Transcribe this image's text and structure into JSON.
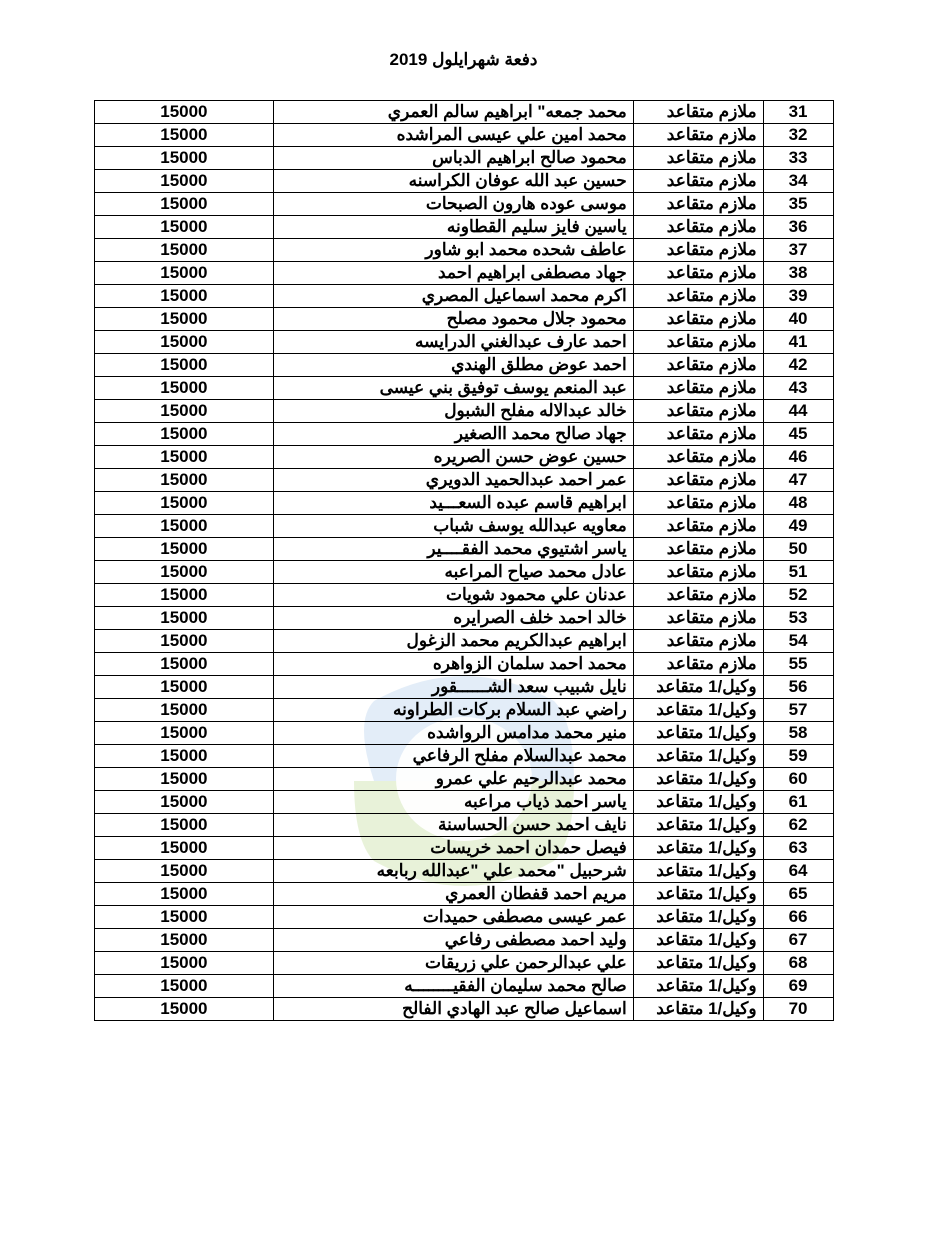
{
  "title": "دفعة شهرايلول 2019",
  "table": {
    "columns": [
      "num",
      "rank",
      "name",
      "amount"
    ],
    "rows": [
      {
        "num": "31",
        "rank": "ملازم متقاعد",
        "name": "محمد جمعه\" ابراهيم سالم العمري",
        "amount": "15000"
      },
      {
        "num": "32",
        "rank": "ملازم متقاعد",
        "name": "محمد امين علي عيسى المراشده",
        "amount": "15000"
      },
      {
        "num": "33",
        "rank": "ملازم متقاعد",
        "name": "محمود صالح ابراهيم الدباس",
        "amount": "15000"
      },
      {
        "num": "34",
        "rank": "ملازم متقاعد",
        "name": "حسين عبد الله عوفان الكراسنه",
        "amount": "15000"
      },
      {
        "num": "35",
        "rank": "ملازم متقاعد",
        "name": "موسى عوده هارون الصبحات",
        "amount": "15000"
      },
      {
        "num": "36",
        "rank": "ملازم متقاعد",
        "name": "ياسين فايز سليم القطاونه",
        "amount": "15000"
      },
      {
        "num": "37",
        "rank": "ملازم متقاعد",
        "name": "عاطف شحده محمد ابو شاور",
        "amount": "15000"
      },
      {
        "num": "38",
        "rank": "ملازم متقاعد",
        "name": "جهاد مصطفى ابراهيم احمد",
        "amount": "15000"
      },
      {
        "num": "39",
        "rank": "ملازم متقاعد",
        "name": "اكرم محمد اسماعيل المصري",
        "amount": "15000"
      },
      {
        "num": "40",
        "rank": "ملازم متقاعد",
        "name": "محمود جلال محمود مصلح",
        "amount": "15000"
      },
      {
        "num": "41",
        "rank": "ملازم متقاعد",
        "name": "احمد عارف عبدالغني الدرايسه",
        "amount": "15000"
      },
      {
        "num": "42",
        "rank": "ملازم متقاعد",
        "name": "احمد عوض مطلق الهندي",
        "amount": "15000"
      },
      {
        "num": "43",
        "rank": "ملازم متقاعد",
        "name": "عبد المنعم يوسف توفيق بني عيسى",
        "amount": "15000"
      },
      {
        "num": "44",
        "rank": "ملازم متقاعد",
        "name": "خالد عبدالاله مفلح الشبول",
        "amount": "15000"
      },
      {
        "num": "45",
        "rank": "ملازم متقاعد",
        "name": "جهاد صالح محمد االصغير",
        "amount": "15000"
      },
      {
        "num": "46",
        "rank": "ملازم متقاعد",
        "name": "حسين عوض حسن الصريره",
        "amount": "15000"
      },
      {
        "num": "47",
        "rank": "ملازم متقاعد",
        "name": "عمر احمد عبدالحميد الدويري",
        "amount": "15000"
      },
      {
        "num": "48",
        "rank": "ملازم متقاعد",
        "name": "ابراهيم قاسم عبده السعـــيد",
        "amount": "15000"
      },
      {
        "num": "49",
        "rank": "ملازم متقاعد",
        "name": "معاويه عبدالله يوسف شباب",
        "amount": "15000"
      },
      {
        "num": "50",
        "rank": "ملازم متقاعد",
        "name": "ياسر اشتيوي محمد الفقــــير",
        "amount": "15000"
      },
      {
        "num": "51",
        "rank": "ملازم متقاعد",
        "name": "عادل محمد صياح المراعبه",
        "amount": "15000"
      },
      {
        "num": "52",
        "rank": "ملازم متقاعد",
        "name": "عدنان علي محمود شويات",
        "amount": "15000"
      },
      {
        "num": "53",
        "rank": "ملازم متقاعد",
        "name": "خالد احمد خلف الصرايره",
        "amount": "15000"
      },
      {
        "num": "54",
        "rank": "ملازم متقاعد",
        "name": "ابراهيم عبدالكريم محمد الزغول",
        "amount": "15000"
      },
      {
        "num": "55",
        "rank": "ملازم متقاعد",
        "name": "محمد احمد سلمان الزواهره",
        "amount": "15000"
      },
      {
        "num": "56",
        "rank": "وكيل/1 متقاعد",
        "name": "نايل شبيب سعد الشــــــقور",
        "amount": "15000"
      },
      {
        "num": "57",
        "rank": "وكيل/1 متقاعد",
        "name": "راضي عبد السلام بركات الطراونه",
        "amount": "15000"
      },
      {
        "num": "58",
        "rank": "وكيل/1 متقاعد",
        "name": "منير محمد مدامس الرواشده",
        "amount": "15000"
      },
      {
        "num": "59",
        "rank": "وكيل/1 متقاعد",
        "name": "محمد عبدالسلام مفلح الرفاعي",
        "amount": "15000"
      },
      {
        "num": "60",
        "rank": "وكيل/1 متقاعد",
        "name": "محمد عبدالرحيم علي عمرو",
        "amount": "15000"
      },
      {
        "num": "61",
        "rank": "وكيل/1 متقاعد",
        "name": "ياسر احمد ذياب مراعبه",
        "amount": "15000"
      },
      {
        "num": "62",
        "rank": "وكيل/1 متقاعد",
        "name": "نايف احمد حسن الحساسنة",
        "amount": "15000"
      },
      {
        "num": "63",
        "rank": "وكيل/1 متقاعد",
        "name": "فيصل حمدان احمد خريسات",
        "amount": "15000"
      },
      {
        "num": "64",
        "rank": "وكيل/1 متقاعد",
        "name": "شرحبيل \"محمد علي \"عبدالله ربابعه",
        "amount": "15000"
      },
      {
        "num": "65",
        "rank": "وكيل/1 متقاعد",
        "name": "مريم احمد قفطان العمري",
        "amount": "15000"
      },
      {
        "num": "66",
        "rank": "وكيل/1 متقاعد",
        "name": "عمر عيسى مصطفى حميدات",
        "amount": "15000"
      },
      {
        "num": "67",
        "rank": "وكيل/1 متقاعد",
        "name": "وليد احمد مصطفى رفاعي",
        "amount": "15000"
      },
      {
        "num": "68",
        "rank": "وكيل/1 متقاعد",
        "name": "علي عبدالرحمن علي  زريقات",
        "amount": "15000"
      },
      {
        "num": "69",
        "rank": "وكيل/1 متقاعد",
        "name": "صالح محمد سليمان الفقيــــــــه",
        "amount": "15000"
      },
      {
        "num": "70",
        "rank": "وكيل/1 متقاعد",
        "name": "اسماعيل صالح عبد الهادي الفالح",
        "amount": "15000"
      }
    ]
  },
  "watermark": {
    "blue_color": "#99b8d8",
    "green_color": "#a8c77a",
    "white_color": "#ffffff"
  },
  "colors": {
    "border": "#000000",
    "text": "#000000",
    "background": "#ffffff"
  }
}
